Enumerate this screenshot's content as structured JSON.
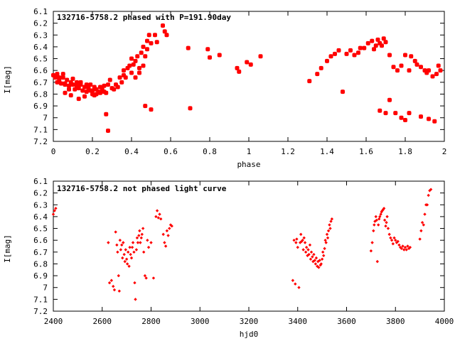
{
  "style": {
    "marker_color": "#ff0000",
    "axis_color": "#000000",
    "background": "#ffffff"
  },
  "chart_data": [
    {
      "type": "scatter",
      "title": "132716-5758.2 phased with P=191.90day",
      "xlabel": "phase",
      "ylabel": "I[mag]",
      "xlim": [
        0,
        2
      ],
      "ylim": [
        6.1,
        7.2
      ],
      "y_inverted": true,
      "x_ticks": [
        0,
        0.2,
        0.4,
        0.6,
        0.8,
        1,
        1.2,
        1.4,
        1.6,
        1.8,
        2
      ],
      "y_ticks": [
        6.1,
        6.2,
        6.3,
        6.4,
        6.5,
        6.6,
        6.7,
        6.8,
        6.9,
        7,
        7.1,
        7.2
      ],
      "grid": false,
      "legend": "none",
      "series": [
        {
          "marker": "filled-octagon",
          "x": [
            0.0,
            0.01,
            0.02,
            0.02,
            0.03,
            0.03,
            0.04,
            0.05,
            0.05,
            0.06,
            0.06,
            0.07,
            0.08,
            0.08,
            0.09,
            0.1,
            0.1,
            0.11,
            0.12,
            0.12,
            0.13,
            0.14,
            0.14,
            0.15,
            0.16,
            0.17,
            0.17,
            0.18,
            0.19,
            0.2,
            0.2,
            0.21,
            0.22,
            0.22,
            0.23,
            0.24,
            0.25,
            0.26,
            0.26,
            0.27,
            0.28,
            0.29,
            0.3,
            0.31,
            0.32,
            0.33,
            0.34,
            0.35,
            0.36,
            0.36,
            0.37,
            0.38,
            0.39,
            0.4,
            0.4,
            0.41,
            0.42,
            0.42,
            0.43,
            0.44,
            0.44,
            0.45,
            0.46,
            0.46,
            0.47,
            0.48,
            0.48,
            0.49,
            0.5,
            0.52,
            0.53,
            0.56,
            0.57,
            0.58,
            0.06,
            0.09,
            0.13,
            0.16,
            0.19,
            0.21,
            0.24,
            0.27,
            0.28,
            0.47,
            0.5,
            0.69,
            0.7,
            0.79,
            0.8,
            0.85,
            0.94,
            0.95,
            0.99,
            1.01,
            1.06,
            1.31,
            1.35,
            1.37,
            1.4,
            1.42,
            1.44,
            1.46,
            1.48,
            1.5,
            1.52,
            1.54,
            1.56,
            1.57,
            1.59,
            1.61,
            1.63,
            1.64,
            1.65,
            1.66,
            1.67,
            1.68,
            1.69,
            1.7,
            1.72,
            1.74,
            1.76,
            1.78,
            1.8,
            1.82,
            1.83,
            1.85,
            1.86,
            1.88,
            1.9,
            1.91,
            1.92,
            1.94,
            1.96,
            1.97,
            1.98,
            1.67,
            1.7,
            1.72,
            1.75,
            1.78,
            1.8,
            1.82,
            1.88,
            1.92,
            1.95
          ],
          "y": [
            6.64,
            6.66,
            6.63,
            6.7,
            6.68,
            6.66,
            6.71,
            6.66,
            6.63,
            6.71,
            6.72,
            6.68,
            6.76,
            6.73,
            6.7,
            6.72,
            6.67,
            6.76,
            6.73,
            6.7,
            6.75,
            6.72,
            6.7,
            6.77,
            6.74,
            6.78,
            6.72,
            6.75,
            6.72,
            6.77,
            6.8,
            6.74,
            6.76,
            6.8,
            6.78,
            6.74,
            6.76,
            6.78,
            6.73,
            6.79,
            6.72,
            6.68,
            6.75,
            6.76,
            6.72,
            6.74,
            6.66,
            6.7,
            6.64,
            6.6,
            6.66,
            6.58,
            6.56,
            6.5,
            6.62,
            6.55,
            6.52,
            6.66,
            6.48,
            6.58,
            6.62,
            6.45,
            6.56,
            6.4,
            6.48,
            6.35,
            6.42,
            6.3,
            6.37,
            6.3,
            6.36,
            6.22,
            6.27,
            6.3,
            6.79,
            6.81,
            6.84,
            6.82,
            6.77,
            6.81,
            6.79,
            6.97,
            7.11,
            6.9,
            6.93,
            6.41,
            6.92,
            6.42,
            6.49,
            6.47,
            6.58,
            6.61,
            6.53,
            6.55,
            6.48,
            6.69,
            6.63,
            6.58,
            6.52,
            6.48,
            6.46,
            6.43,
            6.78,
            6.46,
            6.43,
            6.47,
            6.45,
            6.41,
            6.41,
            6.37,
            6.35,
            6.42,
            6.39,
            6.34,
            6.37,
            6.39,
            6.33,
            6.36,
            6.47,
            6.57,
            6.6,
            6.56,
            6.47,
            6.6,
            6.48,
            6.52,
            6.55,
            6.57,
            6.6,
            6.62,
            6.6,
            6.65,
            6.63,
            6.56,
            6.6,
            6.94,
            6.96,
            6.85,
            6.96,
            7.0,
            7.02,
            6.96,
            6.99,
            7.01,
            7.03
          ]
        }
      ]
    },
    {
      "type": "scatter",
      "title": "132716-5758.2 not phased light curve",
      "xlabel": "hjd0",
      "ylabel": "I[mag]",
      "xlim": [
        2400,
        4000
      ],
      "ylim": [
        6.1,
        7.2
      ],
      "y_inverted": true,
      "x_ticks": [
        2400,
        2600,
        2800,
        3000,
        3200,
        3400,
        3600,
        3800,
        4000
      ],
      "y_ticks": [
        6.1,
        6.2,
        6.3,
        6.4,
        6.5,
        6.6,
        6.7,
        6.8,
        6.9,
        7,
        7.1,
        7.2
      ],
      "grid": false,
      "legend": "none",
      "series": [
        {
          "marker": "small-diamond",
          "x": [
            2400,
            2405,
            2410,
            2625,
            2630,
            2638,
            2645,
            2650,
            2655,
            2660,
            2663,
            2667,
            2670,
            2673,
            2676,
            2680,
            2683,
            2686,
            2690,
            2693,
            2696,
            2700,
            2703,
            2706,
            2710,
            2713,
            2716,
            2720,
            2723,
            2726,
            2730,
            2733,
            2736,
            2740,
            2743,
            2746,
            2750,
            2753,
            2756,
            2760,
            2763,
            2767,
            2770,
            2775,
            2780,
            2785,
            2790,
            2800,
            2810,
            2820,
            2825,
            2830,
            2835,
            2840,
            2850,
            2855,
            2860,
            2865,
            2870,
            2875,
            2880,
            2885,
            3380,
            3385,
            3390,
            3393,
            3396,
            3400,
            3405,
            3410,
            3413,
            3416,
            3420,
            3423,
            3426,
            3430,
            3433,
            3436,
            3440,
            3443,
            3446,
            3450,
            3453,
            3456,
            3460,
            3463,
            3466,
            3470,
            3473,
            3476,
            3480,
            3483,
            3486,
            3490,
            3493,
            3496,
            3500,
            3503,
            3506,
            3510,
            3513,
            3516,
            3520,
            3523,
            3526,
            3530,
            3533,
            3536,
            3540,
            3700,
            3705,
            3710,
            3713,
            3716,
            3720,
            3723,
            3726,
            3730,
            3733,
            3736,
            3740,
            3743,
            3746,
            3750,
            3753,
            3756,
            3760,
            3763,
            3766,
            3770,
            3775,
            3780,
            3785,
            3790,
            3795,
            3800,
            3805,
            3810,
            3815,
            3820,
            3825,
            3830,
            3835,
            3840,
            3845,
            3850,
            3855,
            3860,
            3900,
            3905,
            3910,
            3915,
            3920,
            3925,
            3930,
            3935,
            3940,
            3945
          ],
          "y": [
            6.38,
            6.35,
            6.33,
            6.62,
            6.96,
            6.94,
            6.99,
            7.02,
            6.53,
            6.64,
            6.7,
            6.9,
            7.03,
            6.6,
            6.68,
            6.64,
            6.75,
            6.62,
            6.72,
            6.78,
            6.68,
            6.76,
            6.8,
            6.7,
            6.82,
            6.66,
            6.72,
            6.75,
            6.66,
            6.62,
            6.7,
            6.96,
            7.1,
            6.68,
            6.58,
            6.62,
            6.56,
            6.52,
            6.62,
            6.58,
            6.55,
            6.5,
            6.7,
            6.9,
            6.92,
            6.6,
            6.66,
            6.62,
            6.92,
            6.4,
            6.35,
            6.41,
            6.38,
            6.42,
            6.55,
            6.62,
            6.65,
            6.52,
            6.56,
            6.5,
            6.47,
            6.48,
            6.94,
            6.6,
            6.97,
            6.62,
            6.59,
            6.66,
            7.0,
            6.62,
            6.55,
            6.61,
            6.6,
            6.68,
            6.58,
            6.62,
            6.7,
            6.66,
            6.73,
            6.68,
            6.72,
            6.64,
            6.76,
            6.7,
            6.74,
            6.78,
            6.72,
            6.77,
            6.8,
            6.75,
            6.82,
            6.78,
            6.83,
            6.77,
            6.81,
            6.8,
            6.76,
            6.7,
            6.73,
            6.67,
            6.6,
            6.62,
            6.55,
            6.58,
            6.52,
            6.47,
            6.5,
            6.44,
            6.42,
            6.69,
            6.62,
            6.52,
            6.47,
            6.44,
            6.4,
            6.43,
            6.78,
            6.47,
            6.42,
            6.4,
            6.38,
            6.36,
            6.35,
            6.34,
            6.33,
            6.43,
            6.48,
            6.45,
            6.4,
            6.5,
            6.55,
            6.58,
            6.6,
            6.63,
            6.58,
            6.6,
            6.62,
            6.61,
            6.64,
            6.66,
            6.67,
            6.65,
            6.68,
            6.66,
            6.68,
            6.65,
            6.67,
            6.66,
            6.59,
            6.52,
            6.45,
            6.47,
            6.38,
            6.3,
            6.3,
            6.22,
            6.18,
            6.17
          ]
        }
      ]
    }
  ]
}
